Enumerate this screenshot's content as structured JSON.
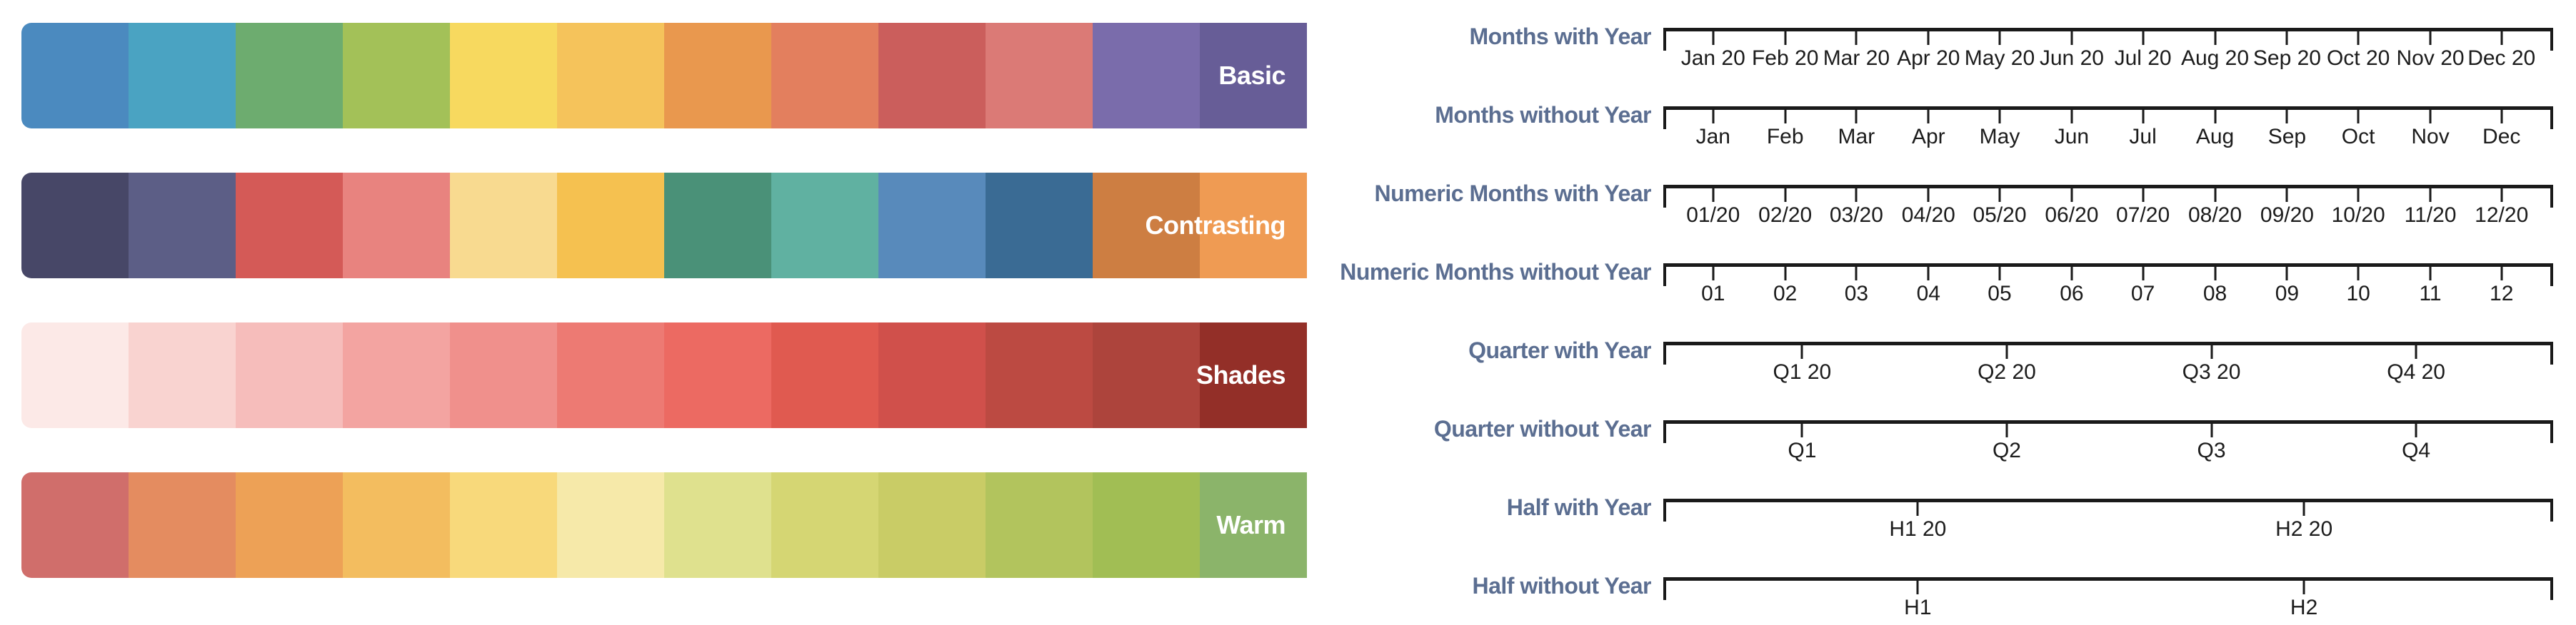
{
  "palettes": {
    "label_text_color": "#ffffff",
    "items": [
      {
        "name": "Basic",
        "colors": [
          "#4b8abf",
          "#4aa3c2",
          "#6dac6f",
          "#a3c158",
          "#f7d95f",
          "#f5c35b",
          "#e9984e",
          "#e37f5e",
          "#cb5e5c",
          "#db7a76",
          "#7a6cab",
          "#675d97"
        ]
      },
      {
        "name": "Contrasting",
        "colors": [
          "#474767",
          "#5c5e86",
          "#d45a57",
          "#e8837f",
          "#f8da90",
          "#f5c150",
          "#4a9178",
          "#60b1a1",
          "#588abb",
          "#3a6b94",
          "#cd7e42",
          "#ef9b53"
        ]
      },
      {
        "name": "Shades",
        "colors": [
          "#fce9e7",
          "#f9d3d0",
          "#f6bdbb",
          "#f3a4a1",
          "#f0908c",
          "#ed7a73",
          "#ec6a62",
          "#e05a50",
          "#d0504b",
          "#bc4a42",
          "#ad443c",
          "#932f28"
        ]
      },
      {
        "name": "Warm",
        "colors": [
          "#d06e6b",
          "#e48c60",
          "#eda156",
          "#f3bd5f",
          "#f8d97b",
          "#f6e9a9",
          "#dfe18e",
          "#d5d673",
          "#c9cc66",
          "#b2c45d",
          "#a1be54",
          "#8bb46a"
        ]
      }
    ]
  },
  "timelines": {
    "axis_color": "#1a1a1a",
    "row_label_color": "#5b6e91",
    "tick_label_color": "#1c1c1c",
    "tick_fractions": {
      "monthly": [
        0.056,
        0.137,
        0.217,
        0.298,
        0.378,
        0.459,
        0.539,
        0.62,
        0.701,
        0.781,
        0.862,
        0.942
      ],
      "quarterly": [
        0.156,
        0.386,
        0.616,
        0.846
      ],
      "half": [
        0.286,
        0.72
      ]
    },
    "rows": [
      {
        "label": "Months with Year",
        "granularity": "monthly",
        "tick_labels": [
          "Jan 20",
          "Feb 20",
          "Mar 20",
          "Apr 20",
          "May 20",
          "Jun 20",
          "Jul 20",
          "Aug 20",
          "Sep 20",
          "Oct 20",
          "Nov 20",
          "Dec 20"
        ]
      },
      {
        "label": "Months without Year",
        "granularity": "monthly",
        "tick_labels": [
          "Jan",
          "Feb",
          "Mar",
          "Apr",
          "May",
          "Jun",
          "Jul",
          "Aug",
          "Sep",
          "Oct",
          "Nov",
          "Dec"
        ]
      },
      {
        "label": "Numeric Months with Year",
        "granularity": "monthly",
        "tick_labels": [
          "01/20",
          "02/20",
          "03/20",
          "04/20",
          "05/20",
          "06/20",
          "07/20",
          "08/20",
          "09/20",
          "10/20",
          "11/20",
          "12/20"
        ]
      },
      {
        "label": "Numeric Months without Year",
        "granularity": "monthly",
        "tick_labels": [
          "01",
          "02",
          "03",
          "04",
          "05",
          "06",
          "07",
          "08",
          "09",
          "10",
          "11",
          "12"
        ]
      },
      {
        "label": "Quarter with Year",
        "granularity": "quarterly",
        "tick_labels": [
          "Q1 20",
          "Q2 20",
          "Q3 20",
          "Q4 20"
        ]
      },
      {
        "label": "Quarter without Year",
        "granularity": "quarterly",
        "tick_labels": [
          "Q1",
          "Q2",
          "Q3",
          "Q4"
        ]
      },
      {
        "label": "Half with Year",
        "granularity": "half",
        "tick_labels": [
          "H1 20",
          "H2 20"
        ]
      },
      {
        "label": "Half without Year",
        "granularity": "half",
        "tick_labels": [
          "H1",
          "H2"
        ]
      }
    ]
  }
}
